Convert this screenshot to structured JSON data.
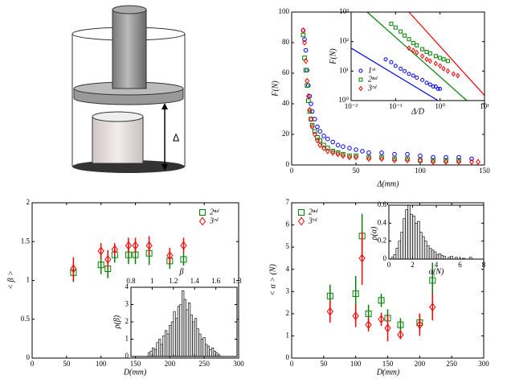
{
  "diagram": {
    "label": "Δ"
  },
  "chart_data": [
    {
      "type": "scatter",
      "xlabel": "Δ(mm)",
      "ylabel": "F(N)",
      "xlim": [
        0,
        150
      ],
      "ylim": [
        0,
        100
      ],
      "xticks": [
        0,
        50,
        100,
        150
      ],
      "yticks": [
        0,
        20,
        40,
        60,
        80,
        100
      ],
      "series": [
        {
          "color": "#0000ff",
          "marker": "o",
          "x": [
            9,
            10,
            11,
            12,
            13,
            14,
            15,
            16,
            18,
            20,
            22,
            25,
            28,
            32,
            36,
            40,
            45,
            50,
            55,
            60,
            70,
            80,
            90,
            100,
            110,
            120,
            130,
            140
          ],
          "values": [
            88,
            82,
            75,
            62,
            52,
            45,
            40,
            35,
            30,
            25,
            22,
            19,
            17,
            15,
            13,
            12,
            11,
            10,
            9,
            8,
            8,
            7,
            7,
            6,
            5,
            5,
            5,
            4
          ]
        },
        {
          "color": "#008000",
          "marker": "s",
          "x": [
            9,
            10,
            11,
            12,
            13,
            14,
            15,
            16,
            18,
            20,
            22,
            25,
            28,
            32,
            36,
            40,
            45,
            50,
            60,
            70,
            80,
            90,
            100,
            110,
            120,
            130
          ],
          "values": [
            85,
            70,
            62,
            52,
            42,
            35,
            30,
            26,
            22,
            18,
            16,
            13,
            11,
            9,
            8,
            7,
            6,
            6,
            5,
            5,
            4,
            4,
            3,
            3,
            3,
            3
          ]
        },
        {
          "color": "#ff0000",
          "marker": "d",
          "x": [
            9,
            10,
            11,
            12,
            13,
            14,
            15,
            16,
            18,
            20,
            22,
            25,
            28,
            32,
            36,
            40,
            45,
            50,
            60,
            70,
            80,
            90,
            100,
            110,
            120,
            130,
            140,
            145
          ],
          "values": [
            88,
            80,
            68,
            55,
            45,
            36,
            30,
            25,
            20,
            16,
            13,
            11,
            9,
            8,
            7,
            6,
            5,
            5,
            4,
            4,
            3,
            3,
            3,
            2,
            2,
            2,
            2,
            2
          ]
        }
      ]
    },
    {
      "type": "scatter",
      "log": true,
      "xlabel": "Δ/D",
      "ylabel": "F(N)",
      "legend": "lower left",
      "xlim": [
        0.01,
        10
      ],
      "ylim": [
        1,
        1000
      ],
      "xticks": [
        {
          "value": 0.01,
          "label": "10⁻²"
        },
        {
          "value": 0.1,
          "label": "10⁻¹"
        },
        {
          "value": 1,
          "label": "10⁰"
        },
        {
          "value": 10,
          "label": "10¹"
        }
      ],
      "yticks": [
        {
          "value": 1,
          "label": "10⁰"
        },
        {
          "value": 10,
          "label": "10¹"
        },
        {
          "value": 100,
          "label": "10²"
        },
        {
          "value": 1000,
          "label": "10³"
        }
      ],
      "series": [
        {
          "name": "1ˢᵗ",
          "color": "#0000ff",
          "marker": "o",
          "x": [
            0.06,
            0.08,
            0.1,
            0.13,
            0.16,
            0.2,
            0.25,
            0.3,
            0.4,
            0.5,
            0.6,
            0.7,
            0.8,
            0.9,
            1.0
          ],
          "values": [
            25,
            20,
            15,
            12,
            10,
            8,
            7,
            6,
            5,
            4,
            3.5,
            3,
            3,
            2.5,
            2.5
          ]
        },
        {
          "name": "2ⁿᵈ",
          "color": "#008000",
          "marker": "s",
          "x": [
            0.08,
            0.1,
            0.13,
            0.16,
            0.2,
            0.25,
            0.3,
            0.4,
            0.5,
            0.6,
            0.8,
            1,
            1.2,
            1.5
          ],
          "values": [
            400,
            300,
            220,
            160,
            120,
            90,
            75,
            55,
            45,
            40,
            32,
            28,
            25,
            22
          ]
        },
        {
          "name": "3ʳᵈ",
          "color": "#ff0000",
          "marker": "d",
          "x": [
            0.2,
            0.25,
            0.3,
            0.4,
            0.5,
            0.6,
            0.8,
            1,
            1.2,
            1.5,
            2,
            2.5
          ],
          "values": [
            60,
            50,
            42,
            32,
            25,
            22,
            18,
            15,
            12,
            10,
            8,
            7
          ]
        }
      ],
      "fits": [
        {
          "color": "#0000ff",
          "x": [
            0.01,
            0.9
          ],
          "values": [
            60,
            1
          ]
        },
        {
          "color": "#008000",
          "x": [
            0.023,
            4
          ],
          "values": [
            1000,
            1
          ]
        },
        {
          "color": "#ff0000",
          "x": [
            0.2,
            10
          ],
          "values": [
            1000,
            1.5
          ]
        }
      ]
    },
    {
      "type": "scatter",
      "xlabel": "D(mm)",
      "ylabel": "< β >",
      "legend": "upper right",
      "xlim": [
        0,
        300
      ],
      "ylim": [
        0,
        2
      ],
      "xticks": [
        0,
        50,
        100,
        150,
        200,
        250,
        300
      ],
      "yticks": [
        0,
        0.5,
        1,
        1.5,
        2
      ],
      "series": [
        {
          "name": "2ⁿᵈ",
          "color": "#008000",
          "marker": "s",
          "x": [
            60,
            100,
            110,
            120,
            140,
            150,
            170,
            200,
            220
          ],
          "values": [
            1.1,
            1.2,
            1.15,
            1.33,
            1.33,
            1.33,
            1.35,
            1.25,
            1.27
          ],
          "error": [
            0.12,
            0.12,
            0.12,
            0.1,
            0.12,
            0.12,
            0.15,
            0.1,
            0.08
          ]
        },
        {
          "name": "3ʳᵈ",
          "color": "#ff0000",
          "marker": "d",
          "x": [
            60,
            100,
            110,
            120,
            140,
            150,
            170,
            200,
            220
          ],
          "values": [
            1.15,
            1.38,
            1.27,
            1.4,
            1.45,
            1.45,
            1.45,
            1.32,
            1.45
          ],
          "error": [
            0.15,
            0.1,
            0.12,
            0.08,
            0.1,
            0.1,
            0.12,
            0.1,
            0.1
          ]
        }
      ]
    },
    {
      "type": "histogram",
      "xlabel": "β",
      "ylabel": "ρ(β)",
      "xaxis": "top",
      "color": "#e0e0e0",
      "xlim": [
        0.8,
        1.8
      ],
      "ylim": [
        0,
        4
      ],
      "xticks": [
        0.8,
        1,
        1.2,
        1.4,
        1.6,
        1.8
      ],
      "yticks": [
        0,
        1,
        2,
        3,
        4
      ],
      "bins": [
        0.96,
        0.98,
        1.0,
        1.02,
        1.04,
        1.06,
        1.08,
        1.1,
        1.12,
        1.14,
        1.16,
        1.18,
        1.2,
        1.22,
        1.24,
        1.26,
        1.28,
        1.3,
        1.32,
        1.34,
        1.36,
        1.38,
        1.4,
        1.42,
        1.44,
        1.46,
        1.48,
        1.5,
        1.52,
        1.54,
        1.56,
        1.58,
        1.6,
        1.62,
        1.64
      ],
      "values": [
        0.2,
        0.3,
        0.5,
        0.4,
        0.8,
        1.0,
        0.7,
        1.2,
        1.5,
        1.3,
        1.8,
        2.0,
        2.6,
        2.2,
        2.9,
        3.0,
        3.8,
        3.3,
        2.7,
        3.1,
        2.4,
        2.0,
        2.2,
        1.6,
        1.3,
        1.0,
        1.1,
        0.7,
        0.6,
        0.4,
        0.5,
        0.3,
        0.2,
        0.1
      ]
    },
    {
      "type": "scatter",
      "xlabel": "D(mm)",
      "ylabel": "< α > (N)",
      "legend": "upper left",
      "xlim": [
        0,
        300
      ],
      "ylim": [
        0,
        7
      ],
      "xticks": [
        0,
        50,
        100,
        150,
        200,
        250,
        300
      ],
      "yticks": [
        0,
        1,
        2,
        3,
        4,
        5,
        6,
        7
      ],
      "series": [
        {
          "name": "2ⁿᵈ",
          "color": "#008000",
          "marker": "s",
          "x": [
            60,
            100,
            110,
            120,
            140,
            150,
            170,
            200,
            220
          ],
          "values": [
            2.8,
            2.9,
            5.5,
            2.0,
            2.6,
            1.8,
            1.5,
            1.6,
            3.5
          ],
          "error": [
            0.5,
            0.8,
            1.0,
            0.4,
            0.3,
            0.4,
            0.3,
            0.4,
            0.8
          ]
        },
        {
          "name": "3ʳᵈ",
          "color": "#ff0000",
          "marker": "d",
          "x": [
            60,
            100,
            110,
            120,
            140,
            150,
            170,
            200,
            220
          ],
          "values": [
            2.1,
            1.9,
            4.5,
            1.5,
            1.75,
            1.35,
            1.05,
            1.5,
            2.3
          ],
          "error": [
            0.5,
            0.5,
            1.2,
            0.3,
            0.3,
            0.6,
            0.2,
            0.5,
            0.6
          ]
        }
      ]
    },
    {
      "type": "histogram",
      "xlabel": "α(N)",
      "ylabel": "ρ(α)",
      "xaxis": "bottom",
      "color": "#e0e0e0",
      "xlim": [
        0,
        8
      ],
      "ylim": [
        0,
        0.6
      ],
      "xticks": [
        0,
        2,
        4,
        6,
        8
      ],
      "yticks": [
        0,
        0.2,
        0.4,
        0.6
      ],
      "bins": [
        0.2,
        0.4,
        0.6,
        0.8,
        1.0,
        1.2,
        1.4,
        1.6,
        1.8,
        2.0,
        2.2,
        2.4,
        2.6,
        2.8,
        3.0,
        3.2,
        3.4,
        3.6,
        3.8,
        4.0,
        4.2,
        4.4,
        4.6,
        4.8,
        5.0,
        5.2,
        5.4,
        5.6,
        5.8,
        6.0,
        6.2,
        6.4,
        6.6,
        6.8,
        7.0
      ],
      "values": [
        0.02,
        0.05,
        0.12,
        0.2,
        0.3,
        0.45,
        0.55,
        0.6,
        0.5,
        0.48,
        0.4,
        0.42,
        0.3,
        0.25,
        0.2,
        0.15,
        0.12,
        0.1,
        0.08,
        0.05,
        0.06,
        0.04,
        0.03,
        0,
        0.02,
        0.03,
        0,
        0.02,
        0,
        0,
        0.01,
        0,
        0,
        0.02
      ]
    }
  ]
}
